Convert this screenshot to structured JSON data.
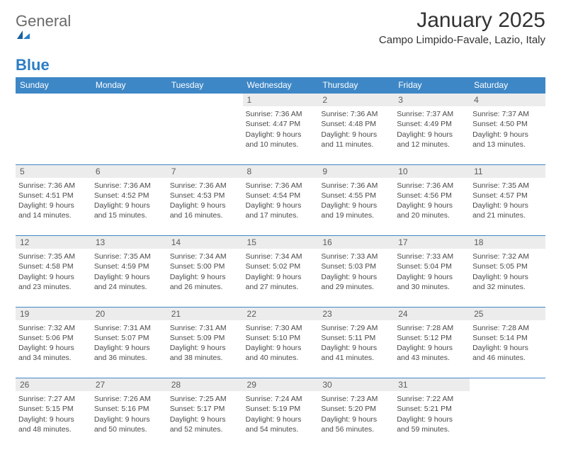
{
  "brand": {
    "word1": "General",
    "word2": "Blue"
  },
  "title": "January 2025",
  "location": "Campo Limpido-Favale, Lazio, Italy",
  "colors": {
    "header_bg": "#3e87c6",
    "header_text": "#ffffff",
    "daynum_bg": "#ececec",
    "daynum_text": "#5b5b5b",
    "cell_text": "#4a4a4a",
    "rule": "#3e87c6",
    "title_text": "#333333",
    "logo_gray": "#6a6a6a",
    "logo_blue": "#2d7dc5"
  },
  "day_headers": [
    "Sunday",
    "Monday",
    "Tuesday",
    "Wednesday",
    "Thursday",
    "Friday",
    "Saturday"
  ],
  "weeks": [
    {
      "nums": [
        "",
        "",
        "",
        "1",
        "2",
        "3",
        "4"
      ],
      "cells": [
        null,
        null,
        null,
        {
          "sunrise": "Sunrise: 7:36 AM",
          "sunset": "Sunset: 4:47 PM",
          "day1": "Daylight: 9 hours",
          "day2": "and 10 minutes."
        },
        {
          "sunrise": "Sunrise: 7:36 AM",
          "sunset": "Sunset: 4:48 PM",
          "day1": "Daylight: 9 hours",
          "day2": "and 11 minutes."
        },
        {
          "sunrise": "Sunrise: 7:37 AM",
          "sunset": "Sunset: 4:49 PM",
          "day1": "Daylight: 9 hours",
          "day2": "and 12 minutes."
        },
        {
          "sunrise": "Sunrise: 7:37 AM",
          "sunset": "Sunset: 4:50 PM",
          "day1": "Daylight: 9 hours",
          "day2": "and 13 minutes."
        }
      ]
    },
    {
      "nums": [
        "5",
        "6",
        "7",
        "8",
        "9",
        "10",
        "11"
      ],
      "cells": [
        {
          "sunrise": "Sunrise: 7:36 AM",
          "sunset": "Sunset: 4:51 PM",
          "day1": "Daylight: 9 hours",
          "day2": "and 14 minutes."
        },
        {
          "sunrise": "Sunrise: 7:36 AM",
          "sunset": "Sunset: 4:52 PM",
          "day1": "Daylight: 9 hours",
          "day2": "and 15 minutes."
        },
        {
          "sunrise": "Sunrise: 7:36 AM",
          "sunset": "Sunset: 4:53 PM",
          "day1": "Daylight: 9 hours",
          "day2": "and 16 minutes."
        },
        {
          "sunrise": "Sunrise: 7:36 AM",
          "sunset": "Sunset: 4:54 PM",
          "day1": "Daylight: 9 hours",
          "day2": "and 17 minutes."
        },
        {
          "sunrise": "Sunrise: 7:36 AM",
          "sunset": "Sunset: 4:55 PM",
          "day1": "Daylight: 9 hours",
          "day2": "and 19 minutes."
        },
        {
          "sunrise": "Sunrise: 7:36 AM",
          "sunset": "Sunset: 4:56 PM",
          "day1": "Daylight: 9 hours",
          "day2": "and 20 minutes."
        },
        {
          "sunrise": "Sunrise: 7:35 AM",
          "sunset": "Sunset: 4:57 PM",
          "day1": "Daylight: 9 hours",
          "day2": "and 21 minutes."
        }
      ]
    },
    {
      "nums": [
        "12",
        "13",
        "14",
        "15",
        "16",
        "17",
        "18"
      ],
      "cells": [
        {
          "sunrise": "Sunrise: 7:35 AM",
          "sunset": "Sunset: 4:58 PM",
          "day1": "Daylight: 9 hours",
          "day2": "and 23 minutes."
        },
        {
          "sunrise": "Sunrise: 7:35 AM",
          "sunset": "Sunset: 4:59 PM",
          "day1": "Daylight: 9 hours",
          "day2": "and 24 minutes."
        },
        {
          "sunrise": "Sunrise: 7:34 AM",
          "sunset": "Sunset: 5:00 PM",
          "day1": "Daylight: 9 hours",
          "day2": "and 26 minutes."
        },
        {
          "sunrise": "Sunrise: 7:34 AM",
          "sunset": "Sunset: 5:02 PM",
          "day1": "Daylight: 9 hours",
          "day2": "and 27 minutes."
        },
        {
          "sunrise": "Sunrise: 7:33 AM",
          "sunset": "Sunset: 5:03 PM",
          "day1": "Daylight: 9 hours",
          "day2": "and 29 minutes."
        },
        {
          "sunrise": "Sunrise: 7:33 AM",
          "sunset": "Sunset: 5:04 PM",
          "day1": "Daylight: 9 hours",
          "day2": "and 30 minutes."
        },
        {
          "sunrise": "Sunrise: 7:32 AM",
          "sunset": "Sunset: 5:05 PM",
          "day1": "Daylight: 9 hours",
          "day2": "and 32 minutes."
        }
      ]
    },
    {
      "nums": [
        "19",
        "20",
        "21",
        "22",
        "23",
        "24",
        "25"
      ],
      "cells": [
        {
          "sunrise": "Sunrise: 7:32 AM",
          "sunset": "Sunset: 5:06 PM",
          "day1": "Daylight: 9 hours",
          "day2": "and 34 minutes."
        },
        {
          "sunrise": "Sunrise: 7:31 AM",
          "sunset": "Sunset: 5:07 PM",
          "day1": "Daylight: 9 hours",
          "day2": "and 36 minutes."
        },
        {
          "sunrise": "Sunrise: 7:31 AM",
          "sunset": "Sunset: 5:09 PM",
          "day1": "Daylight: 9 hours",
          "day2": "and 38 minutes."
        },
        {
          "sunrise": "Sunrise: 7:30 AM",
          "sunset": "Sunset: 5:10 PM",
          "day1": "Daylight: 9 hours",
          "day2": "and 40 minutes."
        },
        {
          "sunrise": "Sunrise: 7:29 AM",
          "sunset": "Sunset: 5:11 PM",
          "day1": "Daylight: 9 hours",
          "day2": "and 41 minutes."
        },
        {
          "sunrise": "Sunrise: 7:28 AM",
          "sunset": "Sunset: 5:12 PM",
          "day1": "Daylight: 9 hours",
          "day2": "and 43 minutes."
        },
        {
          "sunrise": "Sunrise: 7:28 AM",
          "sunset": "Sunset: 5:14 PM",
          "day1": "Daylight: 9 hours",
          "day2": "and 46 minutes."
        }
      ]
    },
    {
      "nums": [
        "26",
        "27",
        "28",
        "29",
        "30",
        "31",
        ""
      ],
      "cells": [
        {
          "sunrise": "Sunrise: 7:27 AM",
          "sunset": "Sunset: 5:15 PM",
          "day1": "Daylight: 9 hours",
          "day2": "and 48 minutes."
        },
        {
          "sunrise": "Sunrise: 7:26 AM",
          "sunset": "Sunset: 5:16 PM",
          "day1": "Daylight: 9 hours",
          "day2": "and 50 minutes."
        },
        {
          "sunrise": "Sunrise: 7:25 AM",
          "sunset": "Sunset: 5:17 PM",
          "day1": "Daylight: 9 hours",
          "day2": "and 52 minutes."
        },
        {
          "sunrise": "Sunrise: 7:24 AM",
          "sunset": "Sunset: 5:19 PM",
          "day1": "Daylight: 9 hours",
          "day2": "and 54 minutes."
        },
        {
          "sunrise": "Sunrise: 7:23 AM",
          "sunset": "Sunset: 5:20 PM",
          "day1": "Daylight: 9 hours",
          "day2": "and 56 minutes."
        },
        {
          "sunrise": "Sunrise: 7:22 AM",
          "sunset": "Sunset: 5:21 PM",
          "day1": "Daylight: 9 hours",
          "day2": "and 59 minutes."
        },
        null
      ]
    }
  ]
}
